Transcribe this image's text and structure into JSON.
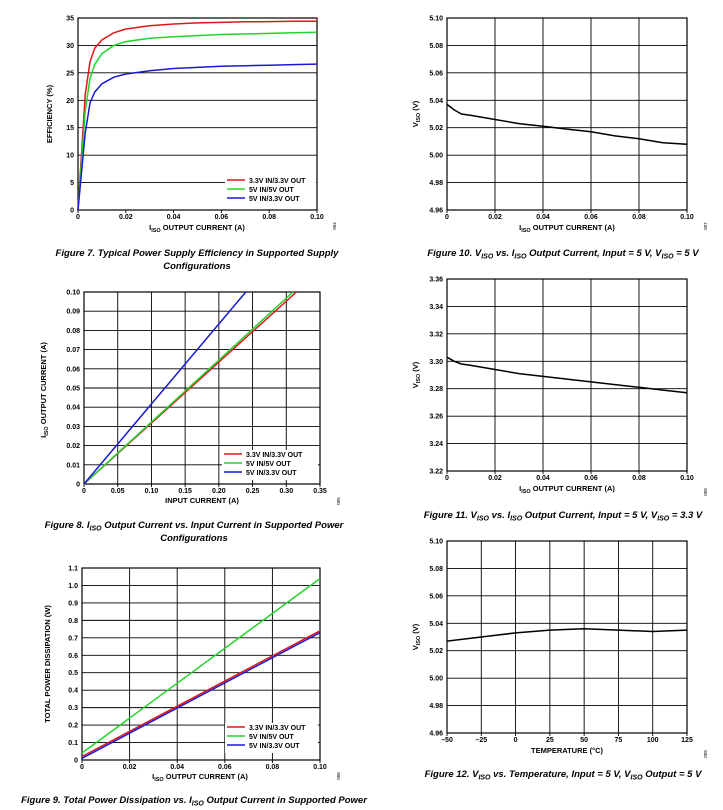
{
  "series_colors": {
    "red": "#e0161b",
    "green": "#22d42a",
    "blue": "#1a1ad6",
    "black": "#000000"
  },
  "chart_data": [
    {
      "type": "line",
      "ylabel_prefix": "EFFICIENCY (%)",
      "xlabel": {
        "pre": "I",
        "sub": "ISO",
        "post": " OUTPUT CURRENT (A)"
      },
      "xlim": [
        0,
        0.1
      ],
      "ylim": [
        0,
        35
      ],
      "xticks": [
        0,
        0.02,
        0.04,
        0.06,
        0.08,
        0.1
      ],
      "xtick_labels": [
        "0",
        "0.02",
        "0.04",
        "0.06",
        "0.08",
        "0.10"
      ],
      "yticks": [
        0,
        5,
        10,
        15,
        20,
        25,
        30,
        35
      ],
      "ytick_labels": [
        "0",
        "5",
        "10",
        "15",
        "20",
        "25",
        "30",
        "35"
      ],
      "grid": "horizontal-only",
      "legend_position": "bottom-right",
      "figure_id": "004",
      "caption": [
        [
          {
            "t": "Figure 7. Typical Power Supply Efficiency in Supported Supply"
          }
        ],
        [
          {
            "t": "Configurations"
          }
        ]
      ],
      "series": [
        {
          "name": "3.3V IN/3.3V OUT",
          "color": "red",
          "x": [
            0,
            0.003,
            0.005,
            0.007,
            0.01,
            0.015,
            0.02,
            0.03,
            0.04,
            0.05,
            0.06,
            0.07,
            0.08,
            0.09,
            0.1
          ],
          "y": [
            0,
            21,
            27,
            29.5,
            31,
            32.3,
            33,
            33.6,
            33.9,
            34.1,
            34.2,
            34.3,
            34.35,
            34.4,
            34.4
          ]
        },
        {
          "name": "5V IN/5V OUT",
          "color": "green",
          "x": [
            0,
            0.003,
            0.005,
            0.007,
            0.01,
            0.015,
            0.02,
            0.03,
            0.04,
            0.05,
            0.06,
            0.07,
            0.08,
            0.09,
            0.1
          ],
          "y": [
            0,
            18,
            24,
            26.5,
            28.5,
            30,
            30.7,
            31.3,
            31.6,
            31.8,
            32,
            32.1,
            32.2,
            32.3,
            32.4
          ]
        },
        {
          "name": "5V IN/3.3V OUT",
          "color": "blue",
          "x": [
            0,
            0.003,
            0.005,
            0.007,
            0.01,
            0.015,
            0.02,
            0.03,
            0.04,
            0.05,
            0.06,
            0.07,
            0.08,
            0.09,
            0.1
          ],
          "y": [
            0,
            14,
            19.5,
            21.5,
            23,
            24.2,
            24.8,
            25.4,
            25.8,
            26,
            26.2,
            26.3,
            26.4,
            26.5,
            26.6
          ]
        }
      ]
    },
    {
      "type": "line",
      "ylabel": {
        "pre": "I",
        "sub": "ISO",
        "post": " OUTPUT CURRENT (A)"
      },
      "xlabel": "INPUT CURRENT (A)",
      "xlim": [
        0,
        0.35
      ],
      "ylim": [
        0,
        0.1
      ],
      "xticks": [
        0,
        0.05,
        0.1,
        0.15,
        0.2,
        0.25,
        0.3,
        0.35
      ],
      "xtick_labels": [
        "0",
        "0.05",
        "0.10",
        "0.15",
        "0.20",
        "0.25",
        "0.30",
        "0.35"
      ],
      "yticks": [
        0,
        0.01,
        0.02,
        0.03,
        0.04,
        0.05,
        0.06,
        0.07,
        0.08,
        0.09,
        0.1
      ],
      "ytick_labels": [
        "0",
        "0.01",
        "0.02",
        "0.03",
        "0.04",
        "0.05",
        "0.06",
        "0.07",
        "0.08",
        "0.09",
        "0.10"
      ],
      "grid": "full",
      "legend_position": "bottom-right",
      "figure_id": "005",
      "caption": [
        [
          {
            "t": "Figure 8. I"
          },
          {
            "t": "ISO",
            "sub": true
          },
          {
            "t": " Output Current vs. Input Current in Supported Power"
          }
        ],
        [
          {
            "t": "Configurations"
          }
        ]
      ],
      "series": [
        {
          "name": "3.3V IN/3.3V OUT",
          "color": "red",
          "x": [
            0,
            0.315
          ],
          "y": [
            0,
            0.1
          ]
        },
        {
          "name": "5V IN/5V OUT",
          "color": "green",
          "x": [
            0,
            0.31
          ],
          "y": [
            0,
            0.1
          ]
        },
        {
          "name": "5V IN/3.3V OUT",
          "color": "blue",
          "x": [
            0,
            0.24
          ],
          "y": [
            0,
            0.1
          ]
        }
      ]
    },
    {
      "type": "line",
      "ylabel": "TOTAL POWER DISSIPATION (W)",
      "xlabel": {
        "pre": "I",
        "sub": "ISO",
        "post": " OUTPUT CURRENT (A)"
      },
      "xlim": [
        0,
        0.1
      ],
      "ylim": [
        0,
        1.1
      ],
      "xticks": [
        0,
        0.02,
        0.04,
        0.06,
        0.08,
        0.1
      ],
      "xtick_labels": [
        "0",
        "0.02",
        "0.04",
        "0.06",
        "0.08",
        "0.10"
      ],
      "yticks": [
        0,
        0.1,
        0.2,
        0.3,
        0.4,
        0.5,
        0.6,
        0.7,
        0.8,
        0.9,
        1.0,
        1.1
      ],
      "ytick_labels": [
        "0",
        "0.1",
        "0.2",
        "0.3",
        "0.4",
        "0.5",
        "0.6",
        "0.7",
        "0.8",
        "0.9",
        "1.0",
        "1.1"
      ],
      "grid": "full",
      "legend_position": "bottom-right",
      "figure_id": "006",
      "caption": [
        [
          {
            "t": "Figure 9. Total Power Dissipation vs. I"
          },
          {
            "t": "ISO",
            "sub": true
          },
          {
            "t": " Output Current in Supported Power"
          }
        ]
      ],
      "series": [
        {
          "name": "3.3V IN/3.3V OUT",
          "color": "red",
          "x": [
            0,
            0.1
          ],
          "y": [
            0.02,
            0.74
          ]
        },
        {
          "name": "5V IN/5V OUT",
          "color": "green",
          "x": [
            0,
            0.1
          ],
          "y": [
            0.04,
            1.04
          ]
        },
        {
          "name": "5V IN/3.3V OUT",
          "color": "blue",
          "x": [
            0,
            0.1
          ],
          "y": [
            0.01,
            0.73
          ]
        }
      ]
    },
    {
      "type": "line",
      "ylabel": {
        "pre": "V",
        "sub": "ISO",
        "post": " (V)"
      },
      "xlabel": {
        "pre": "I",
        "sub": "ISO",
        "post": " OUTPUT CURRENT (A)"
      },
      "xlim": [
        0,
        0.1
      ],
      "ylim": [
        4.96,
        5.1
      ],
      "xticks": [
        0,
        0.02,
        0.04,
        0.06,
        0.08,
        0.1
      ],
      "xtick_labels": [
        "0",
        "0.02",
        "0.04",
        "0.06",
        "0.08",
        "0.10"
      ],
      "yticks": [
        4.96,
        4.98,
        5.0,
        5.02,
        5.04,
        5.06,
        5.08,
        5.1
      ],
      "ytick_labels": [
        "4.96",
        "4.98",
        "5.00",
        "5.02",
        "5.04",
        "5.06",
        "5.08",
        "5.10"
      ],
      "grid": "full",
      "figure_id": "007",
      "caption": [
        [
          {
            "t": "Figure 10. V"
          },
          {
            "t": "ISO",
            "sub": true
          },
          {
            "t": " vs. I"
          },
          {
            "t": "ISO",
            "sub": true
          },
          {
            "t": " Output Current, Input = 5 V, V"
          },
          {
            "t": "ISO",
            "sub": true
          },
          {
            "t": " = 5 V"
          }
        ]
      ],
      "series": [
        {
          "color": "black",
          "x": [
            0,
            0.003,
            0.006,
            0.01,
            0.02,
            0.03,
            0.04,
            0.05,
            0.06,
            0.07,
            0.08,
            0.09,
            0.1
          ],
          "y": [
            5.037,
            5.033,
            5.03,
            5.029,
            5.026,
            5.023,
            5.021,
            5.019,
            5.017,
            5.014,
            5.012,
            5.009,
            5.008
          ]
        }
      ]
    },
    {
      "type": "line",
      "ylabel": {
        "pre": "V",
        "sub": "ISO",
        "post": " (V)"
      },
      "xlabel": {
        "pre": "I",
        "sub": "ISO",
        "post": " OUTPUT CURRENT (A)"
      },
      "xlim": [
        0,
        0.1
      ],
      "ylim": [
        3.22,
        3.36
      ],
      "xticks": [
        0,
        0.02,
        0.04,
        0.06,
        0.08,
        0.1
      ],
      "xtick_labels": [
        "0",
        "0.02",
        "0.04",
        "0.06",
        "0.08",
        "0.10"
      ],
      "yticks": [
        3.22,
        3.24,
        3.26,
        3.28,
        3.3,
        3.32,
        3.34,
        3.36
      ],
      "ytick_labels": [
        "3.22",
        "3.24",
        "3.26",
        "3.28",
        "3.30",
        "3.32",
        "3.34",
        "3.36"
      ],
      "grid": "full",
      "figure_id": "008",
      "caption": [
        [
          {
            "t": "Figure 11. V"
          },
          {
            "t": "ISO",
            "sub": true
          },
          {
            "t": " vs. I"
          },
          {
            "t": "ISO",
            "sub": true
          },
          {
            "t": " Output Current, Input = 5 V, V"
          },
          {
            "t": "ISO",
            "sub": true
          },
          {
            "t": " = 3.3 V"
          }
        ]
      ],
      "series": [
        {
          "color": "black",
          "x": [
            0,
            0.003,
            0.006,
            0.01,
            0.02,
            0.03,
            0.04,
            0.05,
            0.06,
            0.07,
            0.08,
            0.09,
            0.1
          ],
          "y": [
            3.303,
            3.3,
            3.298,
            3.297,
            3.294,
            3.291,
            3.289,
            3.287,
            3.285,
            3.283,
            3.281,
            3.279,
            3.277
          ]
        }
      ]
    },
    {
      "type": "line",
      "ylabel": {
        "pre": "V",
        "sub": "ISO",
        "post": " (V)"
      },
      "xlabel": "TEMPERATURE (°C)",
      "xlim": [
        -50,
        125
      ],
      "ylim": [
        4.96,
        5.1
      ],
      "xticks": [
        -50,
        -25,
        0,
        25,
        50,
        75,
        100,
        125
      ],
      "xtick_labels": [
        "–50",
        "–25",
        "0",
        "25",
        "50",
        "75",
        "100",
        "125"
      ],
      "yticks": [
        4.96,
        4.98,
        5.0,
        5.02,
        5.04,
        5.06,
        5.08,
        5.1
      ],
      "ytick_labels": [
        "4.96",
        "4.98",
        "5.00",
        "5.02",
        "5.04",
        "5.06",
        "5.08",
        "5.10"
      ],
      "grid": "full",
      "figure_id": "009",
      "caption": [
        [
          {
            "t": "Figure 12. V"
          },
          {
            "t": "ISO",
            "sub": true
          },
          {
            "t": " vs. Temperature, Input = 5 V, V"
          },
          {
            "t": "ISO",
            "sub": true
          },
          {
            "t": " Output = 5 V"
          }
        ]
      ],
      "series": [
        {
          "color": "black",
          "x": [
            -50,
            -25,
            0,
            25,
            50,
            75,
            100,
            125
          ],
          "y": [
            5.027,
            5.03,
            5.033,
            5.035,
            5.036,
            5.035,
            5.034,
            5.035
          ]
        }
      ]
    }
  ]
}
